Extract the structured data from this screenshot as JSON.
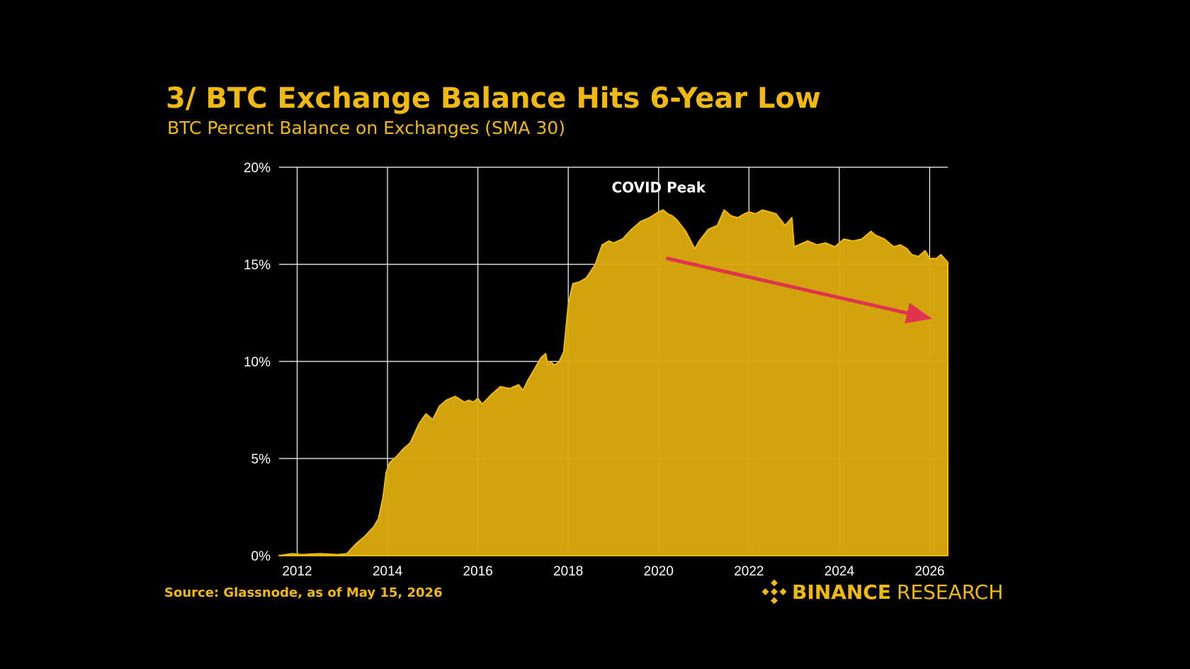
{
  "header": {
    "title": "3/ BTC Exchange Balance Hits 6-Year Low",
    "subtitle": "BTC Percent Balance on Exchanges (SMA 30)"
  },
  "footer": {
    "source": "Source: Glassnode, as of May 15, 2026",
    "brand_bold": "BINANCE",
    "brand_regular": "RESEARCH"
  },
  "colors": {
    "background": "#000000",
    "area_fill": "#D9A80C",
    "area_stroke": "#F0B90B",
    "gridline": "#FFFFFF",
    "arrow": "#E0334D",
    "title": "#F0B90B"
  },
  "icons": {
    "brand_logo": "binance-logo-icon"
  },
  "chart_data": {
    "type": "area",
    "title": "3/ BTC Exchange Balance Hits 6-Year Low",
    "subtitle": "BTC Percent Balance on Exchanges (SMA 30)",
    "xlabel": "",
    "ylabel": "",
    "xlim": [
      2011.6,
      2026.4
    ],
    "ylim": [
      0,
      20
    ],
    "grid": true,
    "legend": "none",
    "x_ticks": [
      2012,
      2014,
      2016,
      2018,
      2020,
      2022,
      2024,
      2026
    ],
    "x_tick_labels": [
      "2012",
      "2014",
      "2016",
      "2018",
      "2020",
      "2022",
      "2024",
      "2026"
    ],
    "y_ticks": [
      0,
      5,
      10,
      15,
      20
    ],
    "y_tick_labels": [
      "0%",
      "5%",
      "10%",
      "15%",
      "20%"
    ],
    "annotations": [
      {
        "text": "COVID Peak",
        "x": 2020.0,
        "y": 18.7
      }
    ],
    "trend_arrow": {
      "from": [
        2020.2,
        15.3
      ],
      "to": [
        2026.05,
        12.2
      ]
    },
    "series": [
      {
        "x": [
          2011.6,
          2011.9,
          2012.1,
          2012.5,
          2012.9,
          2013.1,
          2013.3,
          2013.5,
          2013.7,
          2013.8,
          2013.9,
          2013.97,
          2014.05,
          2014.2,
          2014.35,
          2014.5,
          2014.7,
          2014.85,
          2015.0,
          2015.15,
          2015.3,
          2015.5,
          2015.7,
          2015.8,
          2015.9,
          2016.0,
          2016.1,
          2016.3,
          2016.5,
          2016.7,
          2016.9,
          2017.0,
          2017.1,
          2017.25,
          2017.4,
          2017.5,
          2017.55,
          2017.6,
          2017.7,
          2017.8,
          2017.9,
          2018.0,
          2018.1,
          2018.25,
          2018.4,
          2018.6,
          2018.75,
          2018.9,
          2019.0,
          2019.2,
          2019.4,
          2019.5,
          2019.6,
          2019.8,
          2020.0,
          2020.1,
          2020.2,
          2020.3,
          2020.4,
          2020.6,
          2020.8,
          2020.9,
          2021.0,
          2021.1,
          2021.3,
          2021.45,
          2021.6,
          2021.75,
          2021.9,
          2022.0,
          2022.15,
          2022.3,
          2022.45,
          2022.6,
          2022.7,
          2022.8,
          2022.95,
          2023.0,
          2023.1,
          2023.3,
          2023.5,
          2023.7,
          2023.9,
          2024.1,
          2024.3,
          2024.5,
          2024.7,
          2024.8,
          2025.0,
          2025.2,
          2025.35,
          2025.5,
          2025.6,
          2025.75,
          2025.9,
          2026.0,
          2026.15,
          2026.25,
          2026.4
        ],
        "values": [
          0.0,
          0.1,
          0.05,
          0.1,
          0.05,
          0.1,
          0.6,
          1.0,
          1.5,
          1.9,
          3.0,
          4.3,
          4.8,
          5.1,
          5.5,
          5.8,
          6.8,
          7.3,
          7.0,
          7.7,
          8.0,
          8.2,
          7.9,
          8.0,
          7.9,
          8.1,
          7.8,
          8.3,
          8.7,
          8.6,
          8.8,
          8.5,
          9.0,
          9.6,
          10.2,
          10.4,
          9.8,
          10.0,
          9.8,
          10.0,
          10.5,
          12.9,
          14.0,
          14.1,
          14.3,
          15.0,
          16.0,
          16.2,
          16.1,
          16.3,
          16.8,
          17.0,
          17.2,
          17.4,
          17.7,
          17.8,
          17.6,
          17.5,
          17.3,
          16.7,
          15.8,
          16.2,
          16.5,
          16.8,
          17.0,
          17.8,
          17.5,
          17.4,
          17.6,
          17.7,
          17.6,
          17.8,
          17.7,
          17.6,
          17.3,
          17.0,
          17.4,
          15.9,
          16.0,
          16.2,
          16.0,
          16.1,
          15.9,
          16.3,
          16.2,
          16.3,
          16.7,
          16.5,
          16.3,
          15.9,
          16.0,
          15.8,
          15.5,
          15.4,
          15.7,
          15.3,
          15.3,
          15.5,
          15.1
        ]
      }
    ]
  }
}
